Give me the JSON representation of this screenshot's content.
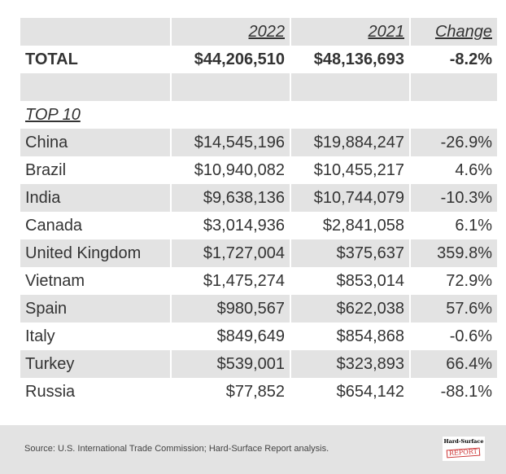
{
  "header": {
    "col0": "",
    "col1": "2022",
    "col2": "2021",
    "col3": "Change"
  },
  "total": {
    "label": "TOTAL",
    "y2022": "$44,206,510",
    "y2021": "$48,136,693",
    "change": "-8.2%"
  },
  "section_label": "TOP 10",
  "rows": [
    {
      "country": "China",
      "y2022": "$14,545,196",
      "y2021": "$19,884,247",
      "change": "-26.9%"
    },
    {
      "country": "Brazil",
      "y2022": "$10,940,082",
      "y2021": "$10,455,217",
      "change": "4.6%"
    },
    {
      "country": "India",
      "y2022": "$9,638,136",
      "y2021": "$10,744,079",
      "change": "-10.3%"
    },
    {
      "country": "Canada",
      "y2022": "$3,014,936",
      "y2021": "$2,841,058",
      "change": "6.1%"
    },
    {
      "country": "United Kingdom",
      "y2022": "$1,727,004",
      "y2021": "$375,637",
      "change": "359.8%"
    },
    {
      "country": "Vietnam",
      "y2022": "$1,475,274",
      "y2021": "$853,014",
      "change": "72.9%"
    },
    {
      "country": "Spain",
      "y2022": "$980,567",
      "y2021": "$622,038",
      "change": "57.6%"
    },
    {
      "country": "Italy",
      "y2022": "$849,649",
      "y2021": "$854,868",
      "change": "-0.6%"
    },
    {
      "country": "Turkey",
      "y2022": "$539,001",
      "y2021": "$323,893",
      "change": "66.4%"
    },
    {
      "country": "Russia",
      "y2022": "$77,852",
      "y2021": "$654,142",
      "change": "-88.1%"
    }
  ],
  "footer": {
    "source": "Source: U.S. International Trade Commission; Hard-Surface Report analysis.",
    "logo_line1": "Hard-Surface",
    "logo_line2": "REPORT"
  }
}
